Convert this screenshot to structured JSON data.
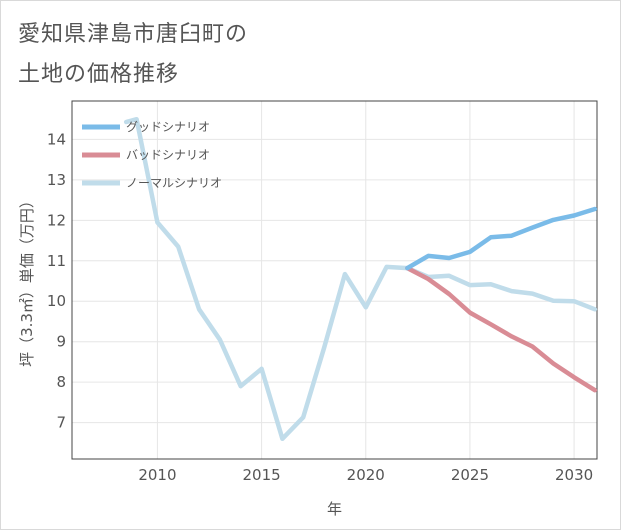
{
  "title_lines": [
    "愛知県津島市唐臼町の",
    "土地の価格推移"
  ],
  "chart_data": {
    "type": "line",
    "xlabel": "年",
    "ylabel": "坪（3.3㎡）単価（万円）",
    "xlim": [
      2005.9,
      2031.1
    ],
    "ylim": [
      6.1,
      14.95
    ],
    "xticks": [
      2010,
      2015,
      2020,
      2025,
      2030
    ],
    "yticks": [
      7,
      8,
      9,
      10,
      11,
      12,
      13,
      14
    ],
    "grid": true,
    "legend_position": "top-left",
    "series": [
      {
        "name": "グッドシナリオ",
        "color": "#7abbe8",
        "x": [
          2022,
          2023,
          2024,
          2025,
          2026,
          2027,
          2028,
          2029,
          2030,
          2031
        ],
        "y": [
          10.82,
          11.12,
          11.07,
          11.22,
          11.58,
          11.62,
          11.82,
          12.01,
          12.12,
          12.28
        ]
      },
      {
        "name": "バッドシナリオ",
        "color": "#d98c95",
        "x": [
          2022,
          2023,
          2024,
          2025,
          2026,
          2027,
          2028,
          2029,
          2030,
          2031
        ],
        "y": [
          10.82,
          10.55,
          10.18,
          9.72,
          9.43,
          9.13,
          8.88,
          8.46,
          8.12,
          7.8
        ]
      },
      {
        "name": "ノーマルシナリオ",
        "color": "#c0dcea",
        "x": [
          2008.5,
          2009,
          2010,
          2011,
          2012,
          2013,
          2014,
          2015,
          2016,
          2017,
          2018,
          2019,
          2020,
          2021,
          2022,
          2023,
          2024,
          2025,
          2026,
          2027,
          2028,
          2029,
          2030,
          2031
        ],
        "y": [
          14.43,
          14.5,
          11.95,
          11.35,
          9.8,
          9.05,
          7.9,
          8.33,
          6.6,
          7.13,
          8.85,
          10.67,
          9.85,
          10.85,
          10.82,
          10.6,
          10.63,
          10.4,
          10.42,
          10.25,
          10.19,
          10.01,
          10.0,
          9.8
        ]
      }
    ]
  }
}
